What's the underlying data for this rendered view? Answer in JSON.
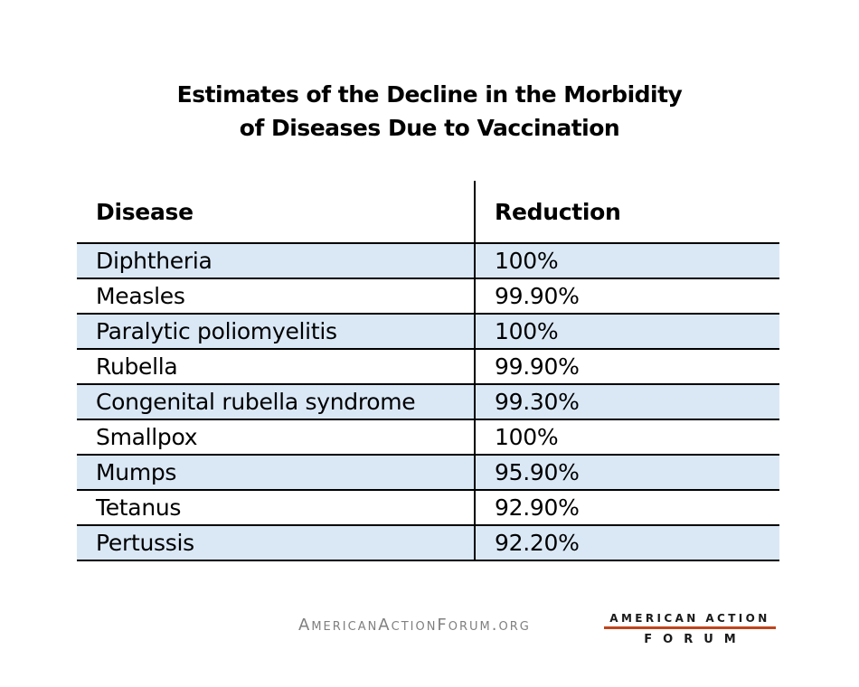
{
  "chart_data": {
    "type": "table",
    "title": [
      "Estimates of the Decline in the Morbidity",
      "of Diseases Due to Vaccination"
    ],
    "columns": [
      "Disease",
      "Reduction"
    ],
    "rows": [
      [
        "Diphtheria",
        "100%"
      ],
      [
        "Measles",
        "99.90%"
      ],
      [
        "Paralytic poliomyelitis",
        "100%"
      ],
      [
        "Rubella",
        "99.90%"
      ],
      [
        "Congenital rubella syndrome",
        "99.30%"
      ],
      [
        "Smallpox",
        "100%"
      ],
      [
        "Mumps",
        "95.90%"
      ],
      [
        "Tetanus",
        "92.90%"
      ],
      [
        "Pertussis",
        "92.20%"
      ]
    ],
    "row_shading_color": "#dae8f6"
  },
  "footer": {
    "website": "AmericanActionForum.org",
    "logo_line1": "AMERICAN ACTION",
    "logo_line2": "FORUM",
    "logo_accent_color": "#c0441c"
  }
}
